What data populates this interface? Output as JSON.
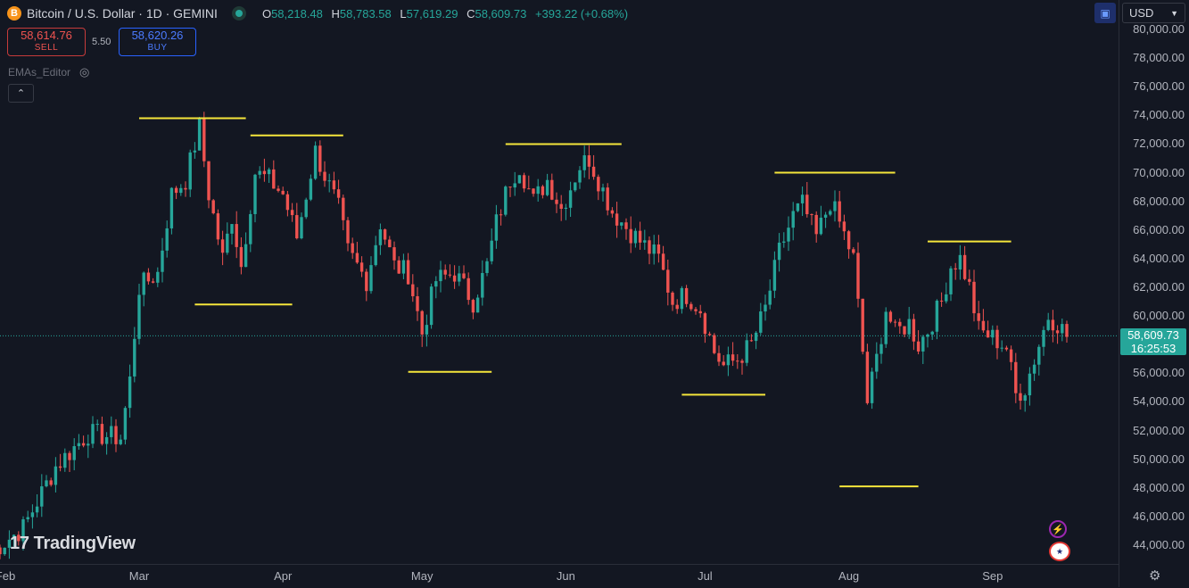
{
  "header": {
    "symbol_title": "Bitcoin / U.S. Dollar · 1D · GEMINI",
    "coin_icon": "B",
    "ohlc": {
      "o_label": "O",
      "o_value": "58,218.48",
      "h_label": "H",
      "h_value": "58,783.58",
      "l_label": "L",
      "l_value": "57,619.29",
      "c_label": "C",
      "c_value": "58,609.73",
      "change": "+393.22 (+0.68%)"
    }
  },
  "trade": {
    "sell_price": "58,614.76",
    "sell_label": "SELL",
    "spread": "5.50",
    "buy_price": "58,620.26",
    "buy_label": "BUY"
  },
  "indicator": {
    "name": "EMAs_Editor"
  },
  "currency": {
    "selected": "USD"
  },
  "logo_text": "TradingView",
  "current_price": {
    "price": "58,609.73",
    "countdown": "16:25:53"
  },
  "price_axis_labels": [
    "80,000.00",
    "78,000.00",
    "76,000.00",
    "74,000.00",
    "72,000.00",
    "70,000.00",
    "68,000.00",
    "66,000.00",
    "64,000.00",
    "62,000.00",
    "60,000.00",
    "56,000.00",
    "54,000.00",
    "52,000.00",
    "50,000.00",
    "48,000.00",
    "46,000.00",
    "44,000.00"
  ],
  "time_axis_labels": [
    "Feb",
    "Mar",
    "Apr",
    "May",
    "Jun",
    "Jul",
    "Aug",
    "Sep"
  ],
  "colors": {
    "up": "#26a69a",
    "down": "#ef5350",
    "level_line": "#f5e63b",
    "background": "#131722"
  },
  "icons": {
    "layout": "layout-icon",
    "settings": "gear-icon",
    "eye": "eye-hidden-icon",
    "alert": "bolt-icon",
    "flag": "us-flag-icon"
  },
  "chart_data": {
    "type": "candlestick",
    "ylim": [
      43000,
      81000
    ],
    "x_range": [
      "2024-01-29",
      "2024-09-21"
    ],
    "series": [
      {
        "close_path": [
          [
            "2024-01-29",
            43500
          ],
          [
            "2024-02-05",
            45200
          ],
          [
            "2024-02-12",
            49500
          ],
          [
            "2024-02-19",
            51800
          ],
          [
            "2024-02-26",
            51500
          ],
          [
            "2024-02-28",
            55500
          ],
          [
            "2024-03-01",
            62000
          ],
          [
            "2024-03-05",
            63000
          ],
          [
            "2024-03-08",
            68500
          ],
          [
            "2024-03-11",
            69500
          ],
          [
            "2024-03-14",
            73200
          ],
          [
            "2024-03-16",
            68500
          ],
          [
            "2024-03-19",
            64000
          ],
          [
            "2024-03-21",
            67000
          ],
          [
            "2024-03-23",
            63500
          ],
          [
            "2024-03-26",
            70000
          ],
          [
            "2024-03-29",
            69500
          ],
          [
            "2024-04-01",
            68500
          ],
          [
            "2024-04-04",
            65500
          ],
          [
            "2024-04-08",
            71500
          ],
          [
            "2024-04-10",
            69800
          ],
          [
            "2024-04-13",
            67500
          ],
          [
            "2024-04-15",
            64500
          ],
          [
            "2024-04-19",
            62500
          ],
          [
            "2024-04-22",
            66500
          ],
          [
            "2024-04-25",
            63500
          ],
          [
            "2024-04-28",
            63000
          ],
          [
            "2024-05-01",
            58800
          ],
          [
            "2024-05-04",
            62500
          ],
          [
            "2024-05-08",
            63000
          ],
          [
            "2024-05-12",
            61000
          ],
          [
            "2024-05-15",
            63500
          ],
          [
            "2024-05-17",
            66500
          ],
          [
            "2024-05-20",
            69500
          ],
          [
            "2024-05-22",
            70500
          ],
          [
            "2024-05-25",
            68000
          ],
          [
            "2024-05-28",
            69500
          ],
          [
            "2024-05-31",
            67500
          ],
          [
            "2024-06-04",
            70500
          ],
          [
            "2024-06-06",
            71000
          ],
          [
            "2024-06-08",
            69500
          ],
          [
            "2024-06-11",
            67300
          ],
          [
            "2024-06-14",
            66200
          ],
          [
            "2024-06-17",
            65200
          ],
          [
            "2024-06-21",
            64000
          ],
          [
            "2024-06-24",
            61000
          ],
          [
            "2024-06-27",
            61500
          ],
          [
            "2024-06-30",
            60500
          ],
          [
            "2024-07-03",
            57500
          ],
          [
            "2024-07-05",
            56500
          ],
          [
            "2024-07-08",
            57000
          ],
          [
            "2024-07-11",
            58000
          ],
          [
            "2024-07-14",
            60500
          ],
          [
            "2024-07-17",
            64500
          ],
          [
            "2024-07-20",
            67000
          ],
          [
            "2024-07-22",
            67800
          ],
          [
            "2024-07-25",
            65500
          ],
          [
            "2024-07-28",
            68000
          ],
          [
            "2024-07-30",
            66500
          ],
          [
            "2024-08-02",
            64000
          ],
          [
            "2024-08-04",
            57500
          ],
          [
            "2024-08-05",
            54000
          ],
          [
            "2024-08-07",
            57000
          ],
          [
            "2024-08-09",
            60500
          ],
          [
            "2024-08-11",
            58800
          ],
          [
            "2024-08-14",
            59500
          ],
          [
            "2024-08-16",
            58000
          ],
          [
            "2024-08-18",
            59000
          ],
          [
            "2024-08-21",
            61000
          ],
          [
            "2024-08-23",
            63500
          ],
          [
            "2024-08-25",
            64000
          ],
          [
            "2024-08-27",
            62000
          ],
          [
            "2024-08-29",
            59000
          ],
          [
            "2024-09-01",
            58500
          ],
          [
            "2024-09-04",
            57800
          ],
          [
            "2024-09-06",
            54500
          ],
          [
            "2024-09-08",
            55000
          ],
          [
            "2024-09-10",
            57000
          ],
          [
            "2024-09-13",
            60000
          ],
          [
            "2024-09-15",
            59500
          ],
          [
            "2024-09-17",
            58609
          ]
        ]
      }
    ],
    "horizontal_levels": [
      {
        "y": 73800,
        "from": "2024-03-01",
        "to": "2024-03-24"
      },
      {
        "y": 72600,
        "from": "2024-03-25",
        "to": "2024-04-14"
      },
      {
        "y": 60800,
        "from": "2024-03-13",
        "to": "2024-04-03"
      },
      {
        "y": 56100,
        "from": "2024-04-28",
        "to": "2024-05-16"
      },
      {
        "y": 72000,
        "from": "2024-05-19",
        "to": "2024-06-13"
      },
      {
        "y": 70000,
        "from": "2024-07-16",
        "to": "2024-08-11"
      },
      {
        "y": 54500,
        "from": "2024-06-26",
        "to": "2024-07-14"
      },
      {
        "y": 48100,
        "from": "2024-07-30",
        "to": "2024-08-16"
      },
      {
        "y": 65200,
        "from": "2024-08-18",
        "to": "2024-09-05"
      }
    ]
  }
}
